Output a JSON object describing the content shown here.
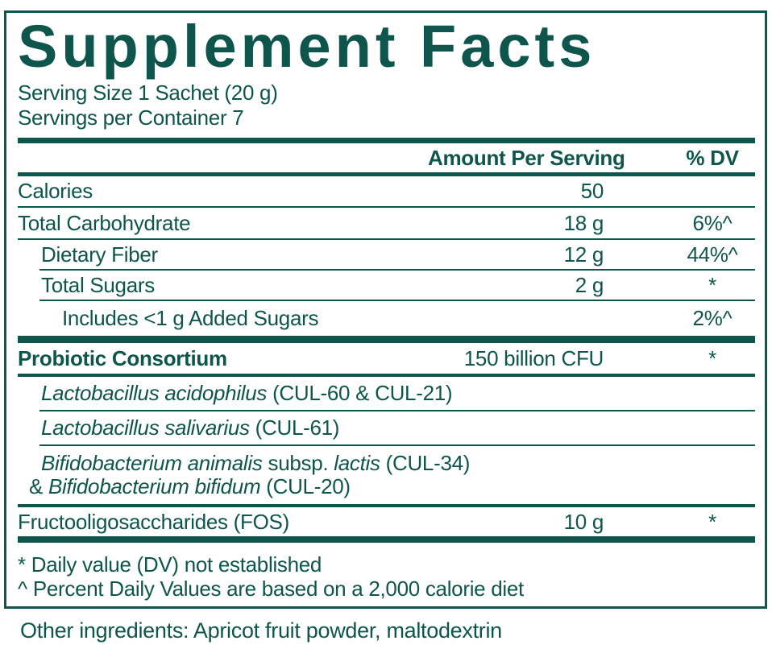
{
  "colors": {
    "accent": "#0E564C"
  },
  "title": "Supplement Facts",
  "serving": {
    "size": "Serving Size 1 Sachet (20 g)",
    "per_container": "Servings per Container 7"
  },
  "table": {
    "headers": {
      "amount": "Amount Per Serving",
      "dv": "% DV"
    },
    "rows": [
      {
        "name": "Calories",
        "amount": "50",
        "dv": ""
      },
      {
        "name": "Total Carbohydrate",
        "amount": "18 g",
        "dv": "6%^"
      },
      {
        "name": "Dietary Fiber",
        "amount": "12 g",
        "dv": "44%^"
      },
      {
        "name": "Total Sugars",
        "amount": "2 g",
        "dv": "*"
      },
      {
        "name": "Includes <1 g Added Sugars",
        "amount": "",
        "dv": "2%^"
      },
      {
        "name": "Probiotic Consortium",
        "amount": "150 billion CFU",
        "dv": "*"
      },
      {
        "parts": [
          "Lactobacillus acidophilus",
          " (CUL-60 & CUL-21)"
        ],
        "amount": "",
        "dv": ""
      },
      {
        "parts": [
          "Lactobacillus salivarius",
          " (CUL-61)"
        ],
        "amount": "",
        "dv": ""
      },
      {
        "line1_parts": [
          "Bifidobacterium animalis",
          " subsp. ",
          "lactis",
          " (CUL-34)"
        ],
        "line2_parts": [
          "& ",
          "Bifidobacterium bifidum",
          " (CUL-20)"
        ],
        "amount": "",
        "dv": ""
      },
      {
        "name": "Fructooligosaccharides (FOS)",
        "amount": "10 g",
        "dv": "*"
      }
    ]
  },
  "footnotes": {
    "dv_not_established": "* Daily value (DV) not established",
    "percent_daily_values": "^ Percent Daily Values are based on a 2,000 calorie diet"
  },
  "other_ingredients": "Other ingredients: Apricot fruit powder, maltodextrin"
}
